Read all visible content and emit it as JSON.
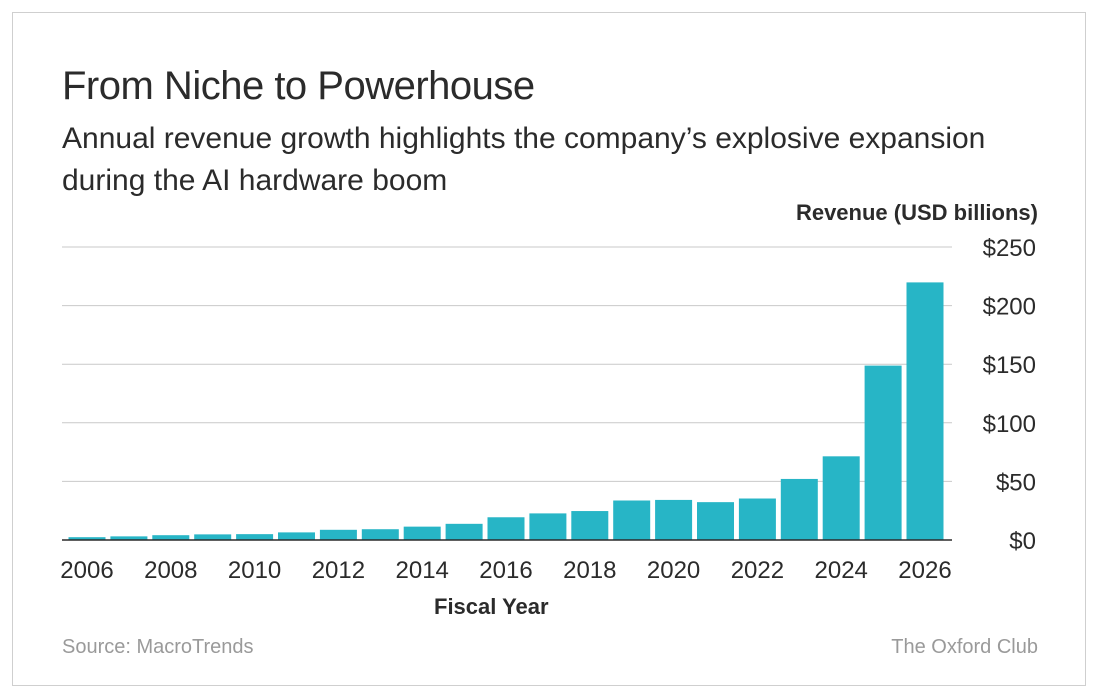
{
  "chart_data": {
    "type": "bar",
    "title": "From Niche to Powerhouse",
    "subtitle": "Annual revenue growth highlights the company’s explosive expansion during the AI hardware boom",
    "ylabel": "Revenue (USD billions)",
    "xlabel": "Fiscal Year",
    "source": "Source: MacroTrends",
    "credit": "The Oxford Club",
    "ylim": [
      0,
      250
    ],
    "yticks": [
      0,
      50,
      100,
      150,
      200,
      250
    ],
    "ytick_labels": [
      "$0",
      "$50",
      "$100",
      "$150",
      "$200",
      "$250"
    ],
    "categories": [
      "2006",
      "2007",
      "2008",
      "2009",
      "2010",
      "2011",
      "2012",
      "2013",
      "2014",
      "2015",
      "2016",
      "2017",
      "2018",
      "2019",
      "2020",
      "2021",
      "2022",
      "2023",
      "2024",
      "2025",
      "2026"
    ],
    "xtick_labels": [
      "2006",
      "2008",
      "2010",
      "2012",
      "2014",
      "2016",
      "2018",
      "2020",
      "2022",
      "2024",
      "2026"
    ],
    "values": [
      2.4,
      3.1,
      4.1,
      4.8,
      5.0,
      6.5,
      8.7,
      9.2,
      11.4,
      13.8,
      19.4,
      22.7,
      24.7,
      33.7,
      34.2,
      32.3,
      35.4,
      52.1,
      71.4,
      148.8,
      219.8
    ],
    "grid": true,
    "bar_color": "#27b5c6",
    "grid_color": "#c9c9c9",
    "axis_color": "#2b2b2b"
  }
}
